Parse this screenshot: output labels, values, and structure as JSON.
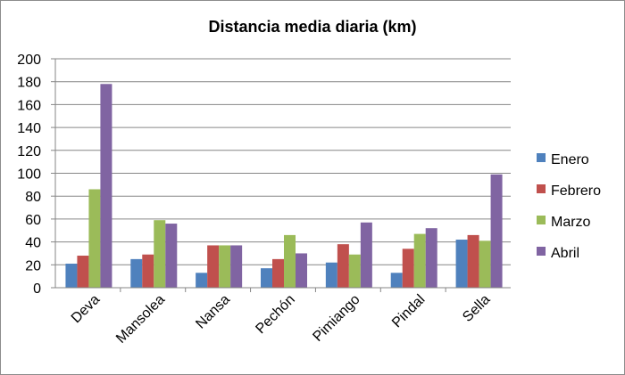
{
  "chart_data": {
    "type": "bar",
    "title": "Distancia media diaria (km)",
    "categories": [
      "Deva",
      "Mansolea",
      "Nansa",
      "Pechón",
      "Pimiango",
      "Pindal",
      "Sella"
    ],
    "series": [
      {
        "name": "Enero",
        "color": "#4F81BD",
        "values": [
          21,
          25,
          13,
          17,
          22,
          13,
          42
        ]
      },
      {
        "name": "Febrero",
        "color": "#C0504D",
        "values": [
          28,
          29,
          37,
          25,
          38,
          34,
          46
        ]
      },
      {
        "name": "Marzo",
        "color": "#9BBB59",
        "values": [
          86,
          59,
          37,
          46,
          29,
          47,
          41
        ]
      },
      {
        "name": "Abril",
        "color": "#8064A2",
        "values": [
          178,
          56,
          37,
          30,
          57,
          52,
          99
        ]
      }
    ],
    "yticks": [
      0,
      20,
      40,
      60,
      80,
      100,
      120,
      140,
      160,
      180,
      200
    ],
    "ylim": [
      0,
      200
    ],
    "grid": true,
    "legend": "right"
  }
}
